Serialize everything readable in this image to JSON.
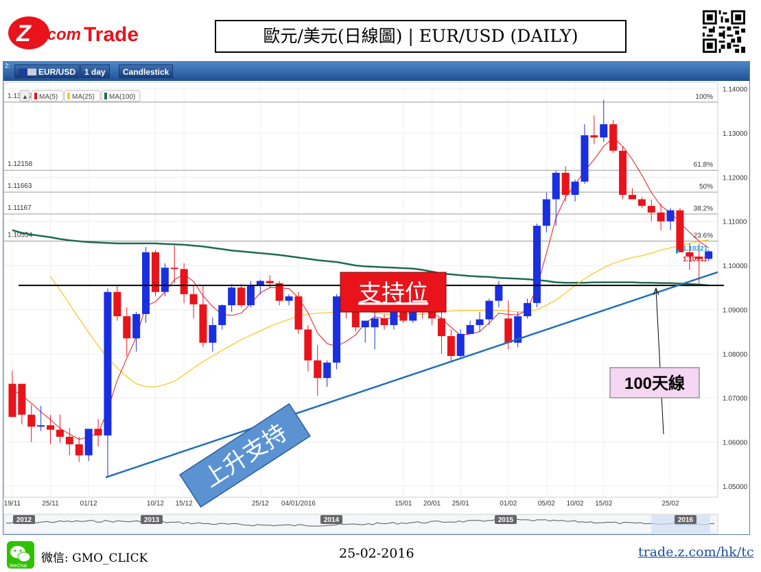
{
  "brand": {
    "logo_text": "Z.com Trade"
  },
  "header": {
    "title": "歐元/美元(日線圖) | EUR/USD  (DAILY)"
  },
  "toolbar": {
    "corner": "2:",
    "symbol": "EUR/USD",
    "interval": "1 day",
    "chart_style": "Candlestick"
  },
  "legend": {
    "collapse_icon": "▲",
    "ma5": "MA(5)",
    "ma25": "MA(25)",
    "ma100": "MA(100)"
  },
  "colors": {
    "up": "#1a2fe0",
    "down": "#e8131b",
    "ma5": "#e8131b",
    "ma25": "#f7c92c",
    "ma100": "#1c6b50",
    "trend": "#1f6fb5",
    "support": "#000000"
  },
  "annotations": {
    "support_label": "支持位",
    "trendline_label": "上升支持",
    "ma100_label": "100天線"
  },
  "footer": {
    "wechat": "微信: GMO_CLICK",
    "date": "25-02-2016",
    "url": "trade.z.com/hk/tc"
  },
  "chart_data": {
    "type": "candlestick",
    "symbol": "EUR/USD",
    "interval": "1 day",
    "ylim": [
      1.0475,
      1.1415
    ],
    "y_ticks": [
      "1.14000",
      "1.13000",
      "1.12000",
      "1.11000",
      "1.10000",
      "1.09000",
      "1.08000",
      "1.07000",
      "1.06000",
      "1.05000"
    ],
    "x_ticks": [
      "19/11",
      "25/11",
      "01/12",
      "10/12",
      "15/12",
      "25/12",
      "04/01/2016",
      "15/01",
      "20/01",
      "25/01",
      "01/02",
      "05/02",
      "10/02",
      "15/02",
      "25/02"
    ],
    "navigator_years": [
      "2012",
      "2013",
      "2014",
      "2015",
      "2016"
    ],
    "fibonacci": [
      {
        "level": "100%",
        "price": "1.13702"
      },
      {
        "level": "61.8%",
        "price": "1.12158"
      },
      {
        "level": "50%",
        "price": "1.11663"
      },
      {
        "level": "38.2%",
        "price": "1.11167"
      },
      {
        "level": "23.6%",
        "price": "1.10554"
      }
    ],
    "price_labels": [
      "1.10321",
      "1.10311"
    ],
    "support_level": 1.0955,
    "trendline": {
      "start": 1.052,
      "end": 1.0985
    },
    "candles": [
      [
        1.0732,
        1.0762,
        1.0658,
        1.0657
      ],
      [
        1.0732,
        1.0732,
        1.064,
        1.0662
      ],
      [
        1.0662,
        1.0685,
        1.06,
        1.0635
      ],
      [
        1.0635,
        1.0682,
        1.0625,
        1.0638
      ],
      [
        1.0638,
        1.0662,
        1.0595,
        1.0628
      ],
      [
        1.0628,
        1.0662,
        1.0598,
        1.0612
      ],
      [
        1.0612,
        1.0632,
        1.057,
        1.0595
      ],
      [
        1.0595,
        1.0612,
        1.0555,
        1.057
      ],
      [
        1.057,
        1.0625,
        1.0557,
        1.063
      ],
      [
        1.063,
        1.0652,
        1.059,
        1.0615
      ],
      [
        1.0615,
        1.0948,
        1.052,
        1.094
      ],
      [
        1.094,
        1.0955,
        1.0875,
        1.0885
      ],
      [
        1.0885,
        1.0905,
        1.0795,
        1.0835
      ],
      [
        1.0835,
        1.0895,
        1.0805,
        1.089
      ],
      [
        1.089,
        1.1042,
        1.087,
        1.103
      ],
      [
        1.103,
        1.1035,
        1.093,
        1.094
      ],
      [
        1.094,
        1.1005,
        1.093,
        1.0995
      ],
      [
        1.0995,
        1.1045,
        1.096,
        1.0992
      ],
      [
        1.0992,
        1.1005,
        1.0915,
        1.0935
      ],
      [
        1.0935,
        1.0955,
        1.088,
        1.0912
      ],
      [
        1.0912,
        1.0955,
        1.0815,
        1.0825
      ],
      [
        1.0825,
        1.0882,
        1.0805,
        1.0865
      ],
      [
        1.0865,
        1.0912,
        1.0855,
        1.091
      ],
      [
        1.091,
        1.0958,
        1.0895,
        1.095
      ],
      [
        1.095,
        1.0958,
        1.0905,
        1.091
      ],
      [
        1.091,
        1.0965,
        1.0905,
        1.0955
      ],
      [
        1.0955,
        1.0968,
        1.0935,
        1.0965
      ],
      [
        1.0965,
        1.0978,
        1.095,
        1.096
      ],
      [
        1.096,
        1.0965,
        1.091,
        1.092
      ],
      [
        1.092,
        1.0935,
        1.091,
        1.093
      ],
      [
        1.093,
        1.094,
        1.0845,
        1.0855
      ],
      [
        1.0855,
        1.0865,
        1.076,
        1.0785
      ],
      [
        1.0785,
        1.082,
        1.0705,
        1.0745
      ],
      [
        1.0745,
        1.0785,
        1.0725,
        1.078
      ],
      [
        1.078,
        1.0935,
        1.0765,
        1.093
      ],
      [
        1.093,
        1.0945,
        1.088,
        1.0905
      ],
      [
        1.0905,
        1.0915,
        1.085,
        1.086
      ],
      [
        1.086,
        1.087,
        1.0825,
        1.0875
      ],
      [
        1.086,
        1.09,
        1.081,
        1.088
      ],
      [
        1.088,
        1.089,
        1.0855,
        1.0865
      ],
      [
        1.0865,
        1.095,
        1.0855,
        1.094
      ],
      [
        1.094,
        1.0945,
        1.087,
        1.0875
      ],
      [
        1.0875,
        1.094,
        1.087,
        1.0915
      ],
      [
        1.0915,
        1.0935,
        1.088,
        1.0898
      ],
      [
        1.0898,
        1.0905,
        1.0865,
        1.088
      ],
      [
        1.088,
        1.09,
        1.08,
        1.084
      ],
      [
        1.084,
        1.0855,
        1.078,
        1.0795
      ],
      [
        1.0795,
        1.0855,
        1.079,
        1.0845
      ],
      [
        1.0845,
        1.0875,
        1.0845,
        1.0865
      ],
      [
        1.0865,
        1.0895,
        1.085,
        1.0878
      ],
      [
        1.0878,
        1.0925,
        1.0865,
        1.092
      ],
      [
        1.092,
        1.0965,
        1.0905,
        1.0955
      ],
      [
        1.088,
        1.092,
        1.081,
        1.0825
      ],
      [
        1.0825,
        1.0895,
        1.0815,
        1.0885
      ],
      [
        1.0885,
        1.0925,
        1.088,
        1.0915
      ],
      [
        1.0915,
        1.1095,
        1.0905,
        1.109
      ],
      [
        1.109,
        1.1165,
        1.1075,
        1.115
      ],
      [
        1.115,
        1.1215,
        1.109,
        1.121
      ],
      [
        1.121,
        1.1225,
        1.1145,
        1.116
      ],
      [
        1.116,
        1.1195,
        1.1145,
        1.119
      ],
      [
        1.119,
        1.132,
        1.1185,
        1.1295
      ],
      [
        1.1295,
        1.134,
        1.1275,
        1.129
      ],
      [
        1.129,
        1.1375,
        1.128,
        1.132
      ],
      [
        1.132,
        1.133,
        1.1255,
        1.126
      ],
      [
        1.126,
        1.127,
        1.115,
        1.116
      ],
      [
        1.116,
        1.1175,
        1.115,
        1.115
      ],
      [
        1.115,
        1.1155,
        1.113,
        1.1135
      ],
      [
        1.1135,
        1.115,
        1.11,
        1.112
      ],
      [
        1.112,
        1.114,
        1.108,
        1.11
      ],
      [
        1.11,
        1.113,
        1.108,
        1.1125
      ],
      [
        1.1125,
        1.113,
        1.103,
        1.103
      ],
      [
        1.103,
        1.105,
        1.099,
        1.102
      ],
      [
        1.102,
        1.105,
        1.096,
        1.1015
      ],
      [
        1.1015,
        1.1035,
        1.101,
        1.1032
      ]
    ],
    "ma5": [
      1.0718,
      1.0706,
      1.0688,
      1.0668,
      1.0651,
      1.0631,
      1.0618,
      1.0606,
      1.0612,
      1.062,
      1.0672,
      1.074,
      1.079,
      1.0838,
      1.0908,
      1.0918,
      1.094,
      1.0968,
      1.098,
      1.0964,
      1.0931,
      1.0907,
      1.0889,
      1.0887,
      1.0892,
      1.0914,
      1.0938,
      1.095,
      1.0949,
      1.0948,
      1.0927,
      1.0893,
      1.0847,
      1.0823,
      1.0817,
      1.0828,
      1.0843,
      1.087,
      1.0884,
      1.0879,
      1.0882,
      1.0887,
      1.0895,
      1.0898,
      1.0893,
      1.088,
      1.086,
      1.0842,
      1.0845,
      1.085,
      1.087,
      1.0892,
      1.0889,
      1.0888,
      1.09,
      1.0951,
      1.1028,
      1.1108,
      1.1155,
      1.1183,
      1.1215,
      1.124,
      1.127,
      1.1289,
      1.127,
      1.124,
      1.1205,
      1.1165,
      1.1135,
      1.112,
      1.1097,
      1.1075,
      1.1055,
      1.104
    ],
    "ma25": [
      null,
      null,
      null,
      null,
      1.0975,
      1.0945,
      1.0912,
      1.088,
      1.0848,
      1.0818,
      1.079,
      1.0768,
      1.0748,
      1.0732,
      1.0726,
      1.0725,
      1.073,
      1.0738,
      1.0752,
      1.0768,
      1.0782,
      1.0795,
      1.0808,
      1.082,
      1.0832,
      1.0842,
      1.0852,
      1.0862,
      1.087,
      1.0878,
      1.0885,
      1.089,
      1.0892,
      1.0893,
      1.0895,
      1.0897,
      1.0898,
      1.0897,
      1.0893,
      1.089,
      1.0888,
      1.0887,
      1.0888,
      1.089,
      1.0893,
      1.0895,
      1.0897,
      1.0898,
      1.0898,
      1.0898,
      1.0898,
      1.0898,
      1.0897,
      1.0895,
      1.0895,
      1.09,
      1.091,
      1.0922,
      1.0938,
      1.0955,
      1.097,
      1.0983,
      1.0995,
      1.1005,
      1.1012,
      1.1018,
      1.1022,
      1.1028,
      1.1035,
      1.104,
      1.1045,
      1.105,
      1.1055,
      1.1058
    ],
    "ma100": [
      1.108,
      1.1074,
      1.107,
      1.1067,
      1.1064,
      1.106,
      1.1057,
      1.1055,
      1.1053,
      1.1052,
      1.1051,
      1.105,
      1.105,
      1.105,
      1.105,
      1.105,
      1.1049,
      1.1048,
      1.1047,
      1.1045,
      1.1043,
      1.104,
      1.1037,
      1.1034,
      1.1032,
      1.103,
      1.1028,
      1.1026,
      1.1024,
      1.1021,
      1.1018,
      1.1015,
      1.1012,
      1.101,
      1.1008,
      1.1004,
      1.1,
      1.0998,
      1.0997,
      1.0996,
      1.0995,
      1.0994,
      1.0993,
      1.099,
      1.0986,
      1.0982,
      1.098,
      1.0978,
      1.0976,
      1.0975,
      1.0974,
      1.0972,
      1.0971,
      1.097,
      1.0969,
      1.0967,
      1.0965,
      1.0962,
      1.0961,
      1.0961,
      1.0961,
      1.0962,
      1.0962,
      1.0962,
      1.0962,
      1.0962,
      1.0961,
      1.0961,
      1.096,
      1.096,
      1.0959,
      1.0958,
      1.0957,
      1.0955
    ]
  }
}
